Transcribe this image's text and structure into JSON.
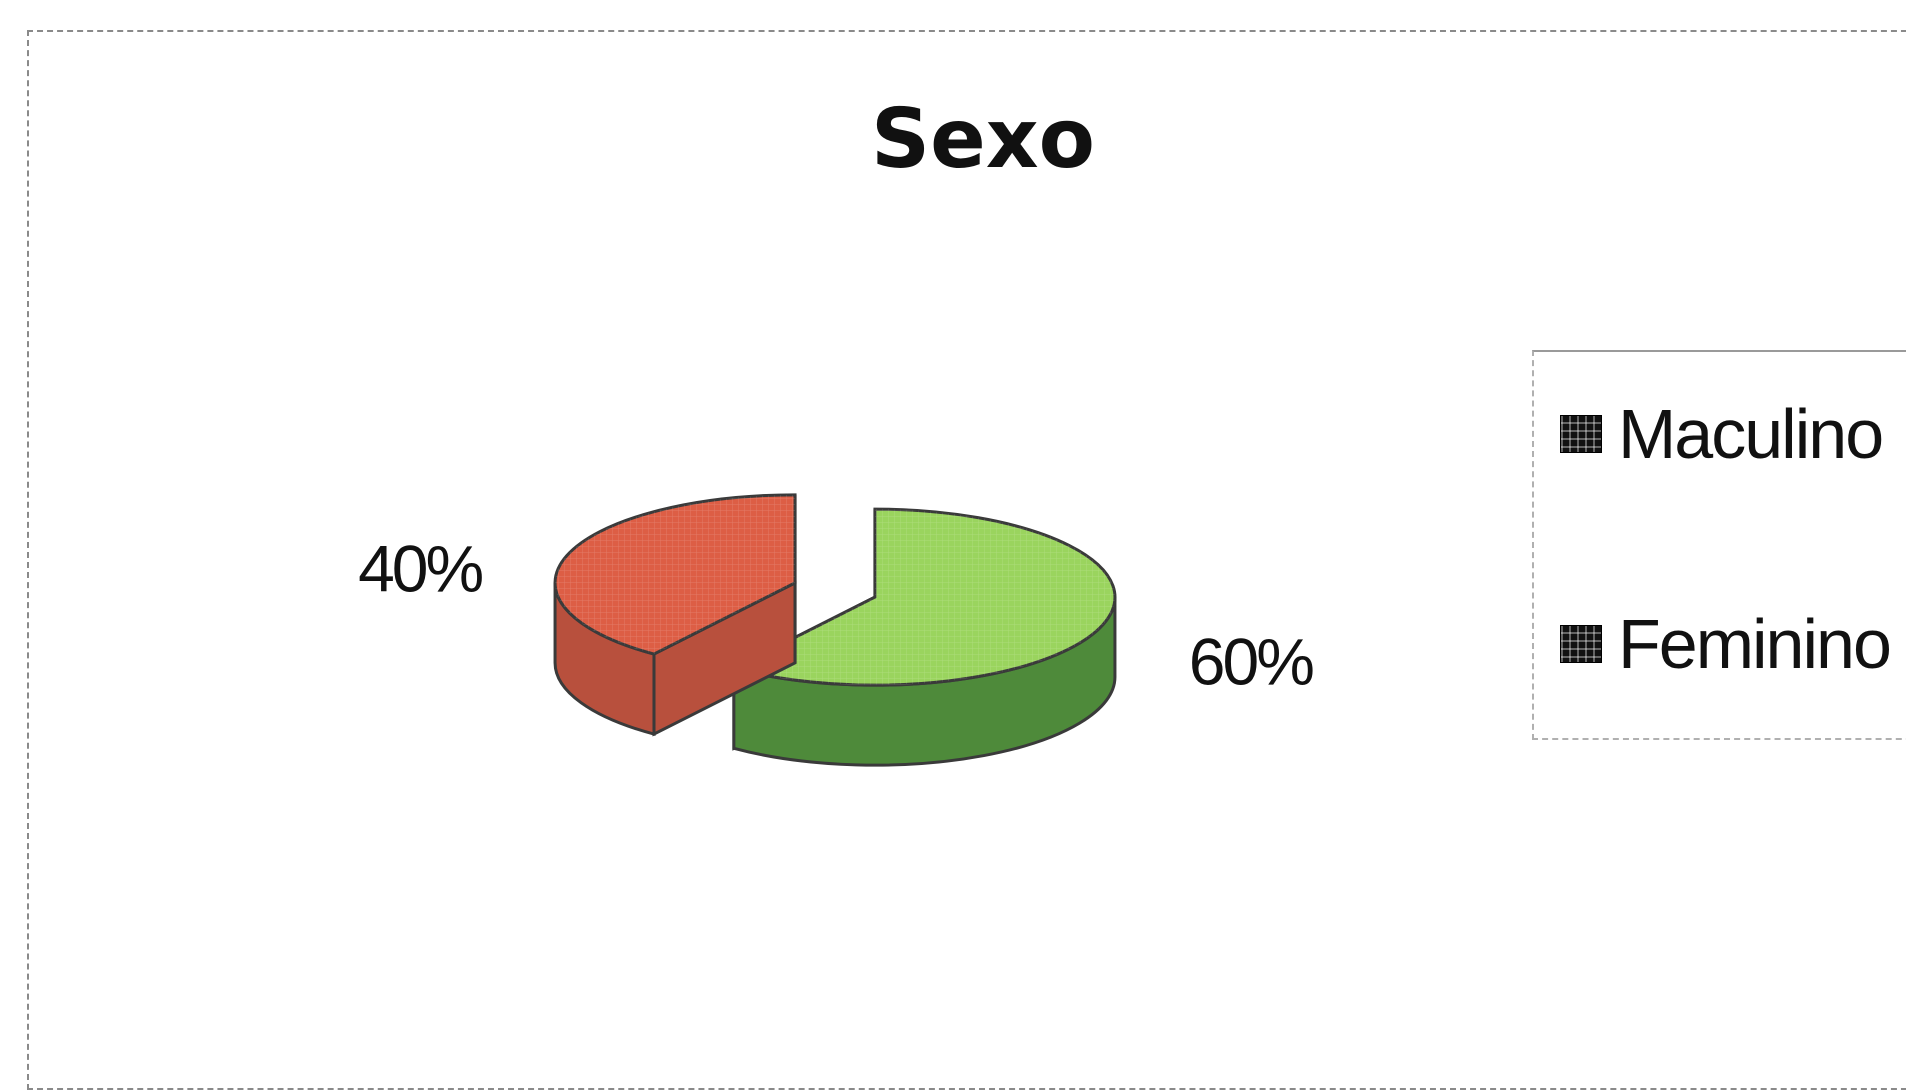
{
  "chart_data": {
    "type": "pie",
    "title": "Sexo",
    "categories": [
      "Maculino",
      "Feminino"
    ],
    "values": [
      60,
      40
    ],
    "data_labels": [
      "60%",
      "40%"
    ],
    "legend_position": "right",
    "colors": {
      "Maculino": {
        "top": "#9ad45e",
        "side": "#4e8a3a"
      },
      "Feminino": {
        "top": "#dd5e45",
        "side": "#b8503d"
      }
    }
  }
}
